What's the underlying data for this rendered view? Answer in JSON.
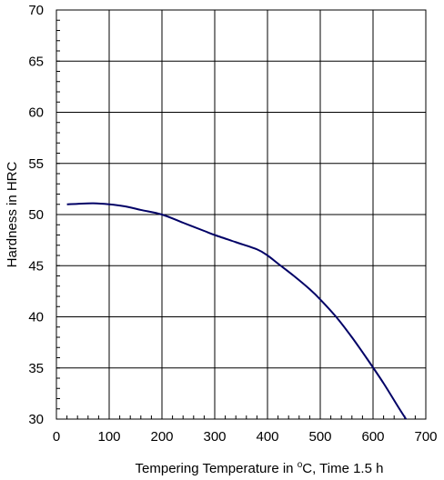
{
  "chart_data": {
    "type": "line",
    "title": "",
    "xlabel": {
      "before": "Tempering Temperature in ",
      "degree": "o",
      "after": "C, Time 1.5 h"
    },
    "ylabel": "Hardness in HRC",
    "xlim": [
      0,
      700
    ],
    "ylim": [
      30,
      70
    ],
    "xticks": [
      0,
      100,
      200,
      300,
      400,
      500,
      600,
      700
    ],
    "yticks": [
      30,
      35,
      40,
      45,
      50,
      55,
      60,
      65,
      70
    ],
    "x_minor_step": 20,
    "y_minor_step": 1,
    "grid": true,
    "line_color": "#000066",
    "series": [
      {
        "x": [
          20,
          40,
          70,
          100,
          130,
          160,
          200,
          240,
          280,
          300,
          340,
          380,
          400,
          420,
          450,
          480,
          500,
          530,
          560,
          590,
          620,
          650,
          675
        ],
        "y": [
          51.0,
          51.05,
          51.1,
          51.0,
          50.8,
          50.45,
          50.0,
          49.2,
          48.4,
          48.0,
          47.3,
          46.6,
          46.0,
          45.2,
          44.0,
          42.7,
          41.7,
          40.0,
          38.0,
          35.8,
          33.5,
          31.0,
          29.0
        ]
      }
    ]
  }
}
